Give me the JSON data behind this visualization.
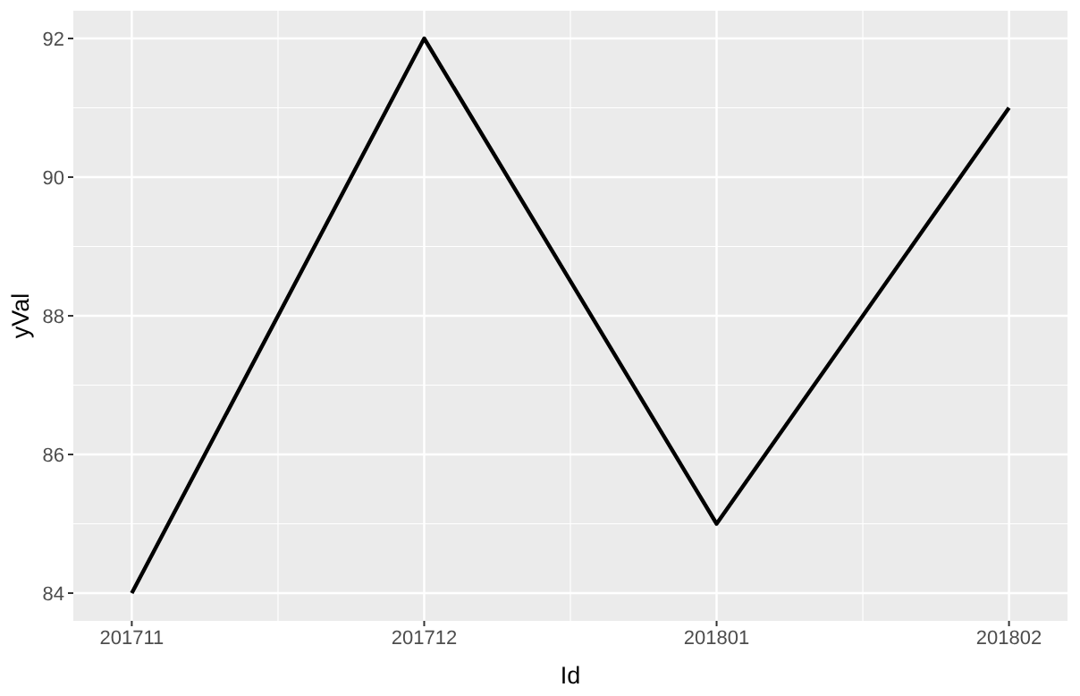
{
  "chart_data": {
    "type": "line",
    "xlabel": "Id",
    "ylabel": "yVal",
    "categories": [
      "201711",
      "201712",
      "201801",
      "201802"
    ],
    "series": [
      {
        "color": "#000000",
        "values": [
          84,
          92,
          85,
          91
        ]
      }
    ],
    "ylim": [
      83.6,
      92.4
    ],
    "yticks": [
      84,
      86,
      88,
      90,
      92
    ],
    "grid": true,
    "marker": "none",
    "line_style": "solid"
  }
}
